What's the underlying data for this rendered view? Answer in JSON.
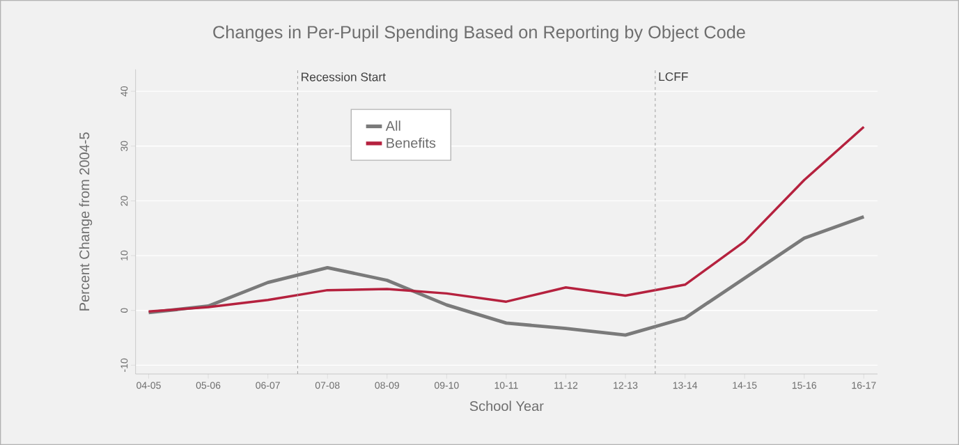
{
  "chart_data": {
    "type": "line",
    "title": "Changes in Per-Pupil Spending Based on Reporting by Object Code",
    "xlabel": "School Year",
    "ylabel": "Percent Change from 2004-5",
    "categories": [
      "04-05",
      "05-06",
      "06-07",
      "07-08",
      "08-09",
      "09-10",
      "10-11",
      "11-12",
      "12-13",
      "13-14",
      "14-15",
      "15-16",
      "16-17"
    ],
    "series": [
      {
        "name": "All",
        "color": "#7a7a7a",
        "values": [
          -0.4,
          0.8,
          5.1,
          7.8,
          5.5,
          1.0,
          -2.3,
          -3.3,
          -4.5,
          -1.4,
          5.9,
          13.2,
          17.1
        ]
      },
      {
        "name": "Benefits",
        "color": "#b5213e",
        "values": [
          -0.2,
          0.6,
          1.9,
          3.7,
          3.9,
          3.1,
          1.6,
          4.2,
          2.7,
          4.7,
          12.6,
          23.8,
          33.5
        ]
      }
    ],
    "ylim": [
      -11.6,
      44
    ],
    "yticks": [
      -10,
      0,
      10,
      20,
      30,
      40
    ],
    "grid": "y",
    "legend": "top",
    "marker": "none",
    "line_style": "solid",
    "annotations": [
      "Recession Start",
      "LCFF"
    ]
  }
}
